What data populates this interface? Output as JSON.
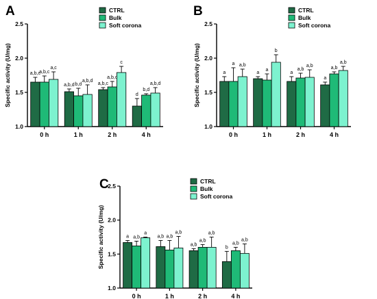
{
  "palette": {
    "CTRL": "#1f6b45",
    "Bulk": "#1fba77",
    "Soft corona": "#7df2cf",
    "axis": "#000000"
  },
  "chart_data": [
    {
      "panel_label": "A",
      "type": "bar",
      "ylabel": "Specific activity (U/mg)",
      "xlabel": "",
      "ylim": [
        1.0,
        2.5
      ],
      "yticks": [
        "1.0",
        "1.5",
        "2.0",
        "2.5"
      ],
      "categories": [
        "0 h",
        "1 h",
        "2 h",
        "4 h"
      ],
      "legend_position": "top-right",
      "series": [
        {
          "name": "CTRL",
          "values": [
            1.65,
            1.51,
            1.54,
            1.3
          ],
          "errors": [
            0.07,
            0.04,
            0.03,
            0.11
          ],
          "labels": [
            "a,b,c",
            "a,b,d",
            "a,b,c",
            "d"
          ]
        },
        {
          "name": "Bulk",
          "values": [
            1.65,
            1.45,
            1.58,
            1.46
          ],
          "errors": [
            0.09,
            0.11,
            0.08,
            0.02
          ],
          "labels": [
            "a,b,c",
            "b,d",
            "a,b,c",
            "b,d"
          ]
        },
        {
          "name": "Soft corona",
          "values": [
            1.69,
            1.47,
            1.79,
            1.49
          ],
          "errors": [
            0.11,
            0.14,
            0.09,
            0.08
          ],
          "labels": [
            "a,c",
            "a,b,d",
            "c",
            "a,b,d"
          ]
        }
      ]
    },
    {
      "panel_label": "B",
      "type": "bar",
      "ylabel": "Specific activity (U/mg)",
      "xlabel": "",
      "ylim": [
        1.0,
        2.5
      ],
      "yticks": [
        "1.0",
        "1.5",
        "2.0",
        "2.5"
      ],
      "categories": [
        "0 h",
        "1 h",
        "2 h",
        "4 h"
      ],
      "legend_position": "top-right",
      "series": [
        {
          "name": "CTRL",
          "values": [
            1.66,
            1.7,
            1.66,
            1.61
          ],
          "errors": [
            0.07,
            0.03,
            0.07,
            0.04
          ],
          "labels": [
            "a",
            "a",
            "a",
            "a"
          ]
        },
        {
          "name": "Bulk",
          "values": [
            1.66,
            1.68,
            1.71,
            1.77
          ],
          "errors": [
            0.2,
            0.09,
            0.07,
            0.03
          ],
          "labels": [
            "a",
            "a",
            "a,b",
            "a,b"
          ]
        },
        {
          "name": "Soft corona",
          "values": [
            1.73,
            1.94,
            1.72,
            1.82
          ],
          "errors": [
            0.11,
            0.11,
            0.11,
            0.06
          ],
          "labels": [
            "a,b",
            "b",
            "a,b",
            "a,b"
          ]
        }
      ]
    },
    {
      "panel_label": "C",
      "type": "bar",
      "ylabel": "Specific activity (U/mg)",
      "xlabel": "",
      "ylim": [
        1.0,
        2.5
      ],
      "yticks": [
        "1.0",
        "1.5",
        "2.0",
        "2.5"
      ],
      "categories": [
        "0 h",
        "1 h",
        "2 h",
        "4 h"
      ],
      "legend_position": "top-right",
      "series": [
        {
          "name": "CTRL",
          "values": [
            1.67,
            1.61,
            1.55,
            1.39
          ],
          "errors": [
            0.03,
            0.09,
            0.03,
            0.15
          ],
          "labels": [
            "a",
            "a,b",
            "a,b",
            "b"
          ]
        },
        {
          "name": "Bulk",
          "values": [
            1.62,
            1.56,
            1.6,
            1.55
          ],
          "errors": [
            0.07,
            0.14,
            0.04,
            0.05
          ],
          "labels": [
            "a,b",
            "a,b",
            "a,b",
            "a,b"
          ]
        },
        {
          "name": "Soft corona",
          "values": [
            1.74,
            1.59,
            1.6,
            1.51
          ],
          "errors": [
            0.01,
            0.17,
            0.15,
            0.14
          ],
          "labels": [
            "a",
            "a,b",
            "a,b",
            "a,b"
          ]
        }
      ]
    }
  ]
}
